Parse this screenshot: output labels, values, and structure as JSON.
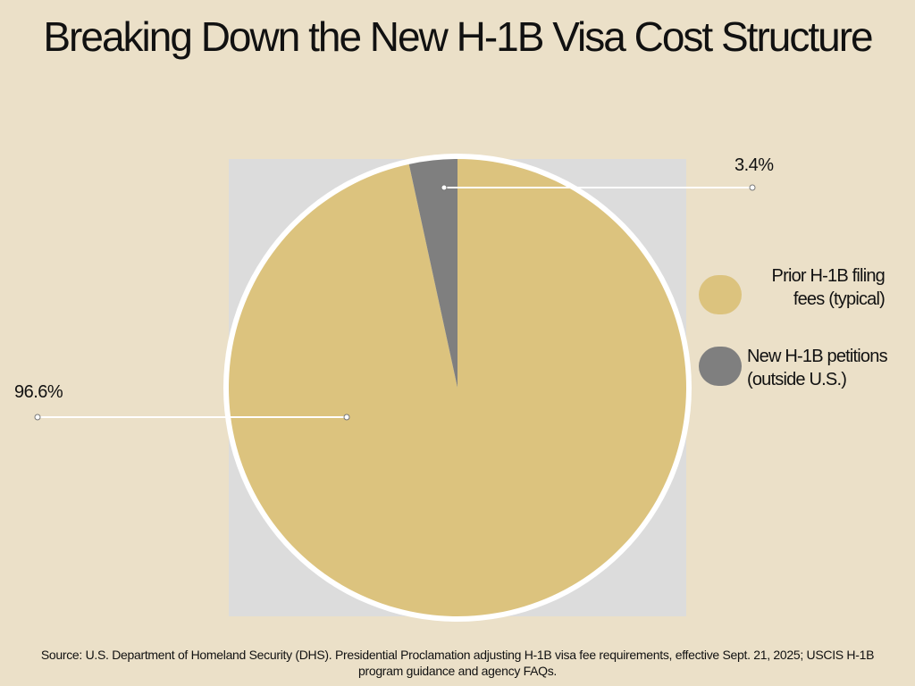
{
  "chart_data": {
    "type": "pie",
    "title": "Breaking Down the New H-1B Visa Cost Structure",
    "categories": [
      "Prior H-1B filing fees (typical)",
      "New H-1B petitions (outside U.S.)"
    ],
    "values": [
      96.6,
      3.4
    ],
    "value_labels": [
      "96.6%",
      "3.4%"
    ],
    "colors": [
      "#dcc37e",
      "#7f7f7f"
    ],
    "source": "Source: U.S. Department of Homeland Security (DHS). Presidential Proclamation adjusting H-1B visa fee requirements, effective Sept. 21, 2025; USCIS H-1B program guidance and agency FAQs."
  }
}
